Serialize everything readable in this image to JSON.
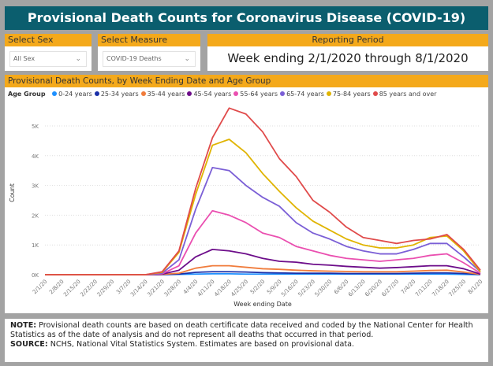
{
  "title": "Provisional Death Counts for Coronavirus Disease (COVID-19)",
  "filters": {
    "sex": {
      "label": "Select Sex",
      "value": "All Sex"
    },
    "measure": {
      "label": "Select Measure",
      "value": "COVID-19 Deaths"
    },
    "period": {
      "label": "Reporting Period",
      "value": "Week ending 2/1/2020 through 8/1/2020"
    }
  },
  "chart_panel_title": "Provisional Death Counts, by Week Ending Date and Age Group",
  "colors": {
    "header_bg": "#0b5e6e",
    "accent": "#f4a91b"
  },
  "chart_data": {
    "type": "line",
    "legend_title": "Age Group",
    "legend_position": "top-left",
    "xlabel": "Week ending Date",
    "ylabel": "Count",
    "ylim": [
      0,
      5800
    ],
    "yticks": [
      0,
      1000,
      2000,
      3000,
      4000,
      5000
    ],
    "ytick_labels": [
      "0K",
      "1K",
      "2K",
      "3K",
      "4K",
      "5K"
    ],
    "grid": true,
    "x": [
      "2/1/20",
      "2/8/20",
      "2/15/20",
      "2/22/20",
      "2/29/20",
      "3/7/20",
      "3/14/20",
      "3/21/20",
      "3/28/20",
      "4/4/20",
      "4/11/20",
      "4/18/20",
      "4/25/20",
      "5/2/20",
      "5/9/20",
      "5/16/20",
      "5/23/20",
      "5/30/20",
      "6/6/20",
      "6/13/20",
      "6/20/20",
      "6/27/20",
      "7/4/20",
      "7/11/20",
      "7/18/20",
      "7/25/20",
      "8/1/20"
    ],
    "series": [
      {
        "name": "0-24 years",
        "color": "#1e90ff",
        "values": [
          0,
          0,
          0,
          0,
          0,
          0,
          0,
          0,
          10,
          20,
          30,
          30,
          20,
          20,
          20,
          20,
          20,
          20,
          20,
          20,
          20,
          20,
          20,
          20,
          20,
          10,
          0
        ]
      },
      {
        "name": "25-34 years",
        "color": "#1a2fa8",
        "values": [
          0,
          0,
          0,
          0,
          0,
          0,
          0,
          5,
          20,
          80,
          100,
          100,
          90,
          70,
          60,
          50,
          50,
          50,
          40,
          40,
          40,
          40,
          50,
          60,
          60,
          40,
          10
        ]
      },
      {
        "name": "35-44 years",
        "color": "#f07c3c",
        "values": [
          0,
          0,
          0,
          0,
          0,
          0,
          0,
          10,
          50,
          220,
          300,
          300,
          250,
          200,
          180,
          150,
          130,
          120,
          110,
          100,
          100,
          100,
          120,
          140,
          150,
          90,
          10
        ]
      },
      {
        "name": "45-54 years",
        "color": "#6d0d8a",
        "values": [
          0,
          0,
          0,
          0,
          0,
          0,
          0,
          20,
          150,
          600,
          850,
          800,
          700,
          550,
          450,
          420,
          350,
          320,
          280,
          250,
          220,
          240,
          270,
          300,
          300,
          200,
          20
        ]
      },
      {
        "name": "55-64 years",
        "color": "#ea4fb0",
        "values": [
          0,
          0,
          0,
          0,
          0,
          0,
          0,
          30,
          300,
          1400,
          2150,
          2000,
          1750,
          1400,
          1250,
          950,
          800,
          650,
          550,
          500,
          450,
          500,
          550,
          650,
          700,
          400,
          50
        ]
      },
      {
        "name": "65-74 years",
        "color": "#7b5fd6",
        "values": [
          0,
          0,
          0,
          0,
          0,
          0,
          0,
          50,
          500,
          2200,
          3600,
          3500,
          3000,
          2600,
          2300,
          1750,
          1400,
          1200,
          950,
          800,
          700,
          700,
          850,
          1050,
          1050,
          600,
          100
        ]
      },
      {
        "name": "75-84 years",
        "color": "#e0b400",
        "values": [
          0,
          0,
          0,
          0,
          0,
          0,
          0,
          80,
          750,
          2700,
          4350,
          4550,
          4100,
          3400,
          2800,
          2250,
          1800,
          1500,
          1200,
          1000,
          900,
          900,
          1000,
          1250,
          1300,
          800,
          100
        ]
      },
      {
        "name": "85 years and over",
        "color": "#e04a4a",
        "values": [
          0,
          0,
          0,
          0,
          0,
          0,
          0,
          100,
          800,
          2900,
          4600,
          5600,
          5400,
          4800,
          3900,
          3300,
          2500,
          2100,
          1600,
          1250,
          1150,
          1050,
          1150,
          1200,
          1350,
          850,
          150
        ]
      }
    ]
  },
  "note": {
    "note_label": "NOTE:",
    "note_text": " Provisional death counts are based on death certificate data received and coded by the National Center for Health Statistics as of the date of analysis and do not represent all deaths that occurred in that period.",
    "source_label": "SOURCE:",
    "source_text": " NCHS, National Vital Statistics System. Estimates are based on provisional data."
  }
}
